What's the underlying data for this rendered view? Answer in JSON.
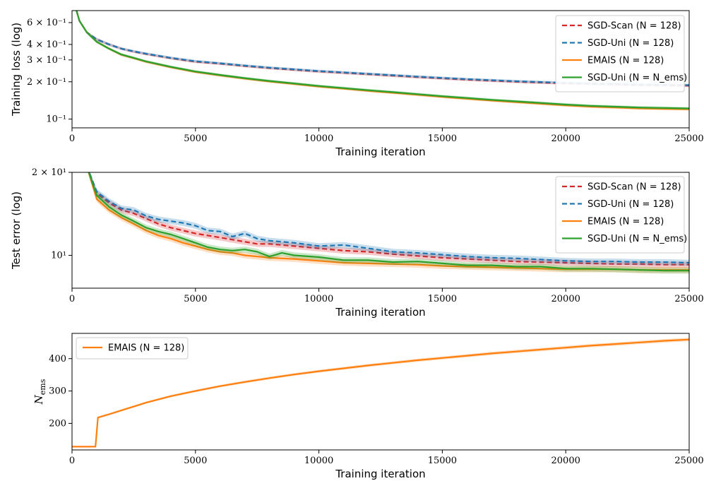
{
  "chart_data": [
    {
      "type": "line",
      "xlabel": "Training iteration",
      "ylabel": "Training loss (log)",
      "yscale": "log",
      "xlim": [
        0,
        25000
      ],
      "ylim": [
        0.085,
        0.75
      ],
      "xticks": [
        {
          "value": 0,
          "label": "0"
        },
        {
          "value": 5000,
          "label": "5000"
        },
        {
          "value": 10000,
          "label": "10000"
        },
        {
          "value": 15000,
          "label": "15000"
        },
        {
          "value": 20000,
          "label": "20000"
        },
        {
          "value": 25000,
          "label": "25000"
        }
      ],
      "yticks": [
        {
          "value": 0.1,
          "label": "10⁻¹"
        },
        {
          "value": 0.2,
          "label": "2 × 10⁻¹"
        },
        {
          "value": 0.3,
          "label": "3 × 10⁻¹"
        },
        {
          "value": 0.4,
          "label": "4 × 10⁻¹"
        },
        {
          "value": 0.6,
          "label": "6 × 10⁻¹"
        }
      ],
      "legend": "top-right",
      "grid": false,
      "series": [
        {
          "name": "SGD-Scan (N = 128)",
          "color": "#d62728",
          "dash": true,
          "x": [
            0,
            300,
            600,
            1000,
            1500,
            2000,
            2500,
            3000,
            4000,
            5000,
            6000,
            7000,
            8000,
            9000,
            10000,
            11000,
            12000,
            13000,
            14000,
            15000,
            16000,
            17000,
            18000,
            19000,
            20000,
            21000,
            22000,
            23000,
            24000,
            25000
          ],
          "y": [
            1.0,
            0.62,
            0.5,
            0.44,
            0.4,
            0.37,
            0.35,
            0.335,
            0.31,
            0.29,
            0.28,
            0.268,
            0.258,
            0.25,
            0.242,
            0.236,
            0.23,
            0.224,
            0.218,
            0.213,
            0.208,
            0.204,
            0.2,
            0.197,
            0.194,
            0.192,
            0.19,
            0.188,
            0.187,
            0.186
          ]
        },
        {
          "name": "SGD-Uni (N = 128)",
          "color": "#1f77b4",
          "dash": true,
          "x": [
            0,
            300,
            600,
            1000,
            1500,
            2000,
            2500,
            3000,
            4000,
            5000,
            6000,
            7000,
            8000,
            9000,
            10000,
            11000,
            12000,
            13000,
            14000,
            15000,
            16000,
            17000,
            18000,
            19000,
            20000,
            21000,
            22000,
            23000,
            24000,
            25000
          ],
          "y": [
            1.0,
            0.62,
            0.5,
            0.44,
            0.4,
            0.37,
            0.352,
            0.337,
            0.312,
            0.293,
            0.282,
            0.27,
            0.26,
            0.252,
            0.244,
            0.238,
            0.232,
            0.226,
            0.22,
            0.215,
            0.21,
            0.206,
            0.202,
            0.199,
            0.196,
            0.194,
            0.192,
            0.19,
            0.189,
            0.188
          ]
        },
        {
          "name": "EMAIS (N = 128)",
          "color": "#ff7f0e",
          "dash": false,
          "x": [
            0,
            300,
            600,
            1000,
            1500,
            2000,
            2500,
            3000,
            4000,
            5000,
            6000,
            7000,
            8000,
            9000,
            10000,
            11000,
            12000,
            13000,
            14000,
            15000,
            16000,
            17000,
            18000,
            19000,
            20000,
            21000,
            22000,
            23000,
            24000,
            25000
          ],
          "y": [
            1.0,
            0.62,
            0.5,
            0.42,
            0.37,
            0.33,
            0.31,
            0.29,
            0.262,
            0.24,
            0.225,
            0.212,
            0.201,
            0.192,
            0.183,
            0.176,
            0.169,
            0.163,
            0.157,
            0.151,
            0.146,
            0.141,
            0.137,
            0.133,
            0.129,
            0.126,
            0.124,
            0.122,
            0.121,
            0.12
          ]
        },
        {
          "name": "SGD-Uni (N = N_ems)",
          "color": "#2ca02c",
          "dash": false,
          "x": [
            0,
            300,
            600,
            1000,
            1500,
            2000,
            2500,
            3000,
            4000,
            5000,
            6000,
            7000,
            8000,
            9000,
            10000,
            11000,
            12000,
            13000,
            14000,
            15000,
            16000,
            17000,
            18000,
            19000,
            20000,
            21000,
            22000,
            23000,
            24000,
            25000
          ],
          "y": [
            1.0,
            0.62,
            0.5,
            0.42,
            0.37,
            0.332,
            0.312,
            0.292,
            0.264,
            0.242,
            0.227,
            0.214,
            0.203,
            0.194,
            0.185,
            0.178,
            0.171,
            0.165,
            0.159,
            0.153,
            0.148,
            0.143,
            0.139,
            0.135,
            0.131,
            0.128,
            0.126,
            0.124,
            0.123,
            0.122
          ]
        }
      ]
    },
    {
      "type": "line",
      "xlabel": "Training iteration",
      "ylabel": "Test error (log)",
      "yscale": "log",
      "xlim": [
        0,
        25000
      ],
      "ylim": [
        7.6,
        20
      ],
      "xticks": [
        {
          "value": 0,
          "label": "0"
        },
        {
          "value": 5000,
          "label": "5000"
        },
        {
          "value": 10000,
          "label": "10000"
        },
        {
          "value": 15000,
          "label": "15000"
        },
        {
          "value": 20000,
          "label": "20000"
        },
        {
          "value": 25000,
          "label": "25000"
        }
      ],
      "yticks": [
        {
          "value": 10,
          "label": "10¹"
        },
        {
          "value": 20,
          "label": "2 × 10¹"
        }
      ],
      "legend": "top-right",
      "grid": false,
      "series": [
        {
          "name": "SGD-Scan (N = 128)",
          "color": "#d62728",
          "dash": true,
          "x": [
            600,
            1000,
            1500,
            2000,
            2500,
            3000,
            3500,
            4000,
            4500,
            5000,
            5500,
            6000,
            6500,
            7000,
            7500,
            8000,
            9000,
            10000,
            11000,
            12000,
            13000,
            14000,
            15000,
            16000,
            17000,
            18000,
            19000,
            20000,
            21000,
            22000,
            23000,
            24000,
            25000
          ],
          "y": [
            21,
            16.8,
            15.5,
            14.6,
            14.2,
            13.6,
            13.0,
            12.6,
            12.3,
            12.0,
            11.8,
            11.6,
            11.4,
            11.2,
            11.0,
            11.0,
            10.8,
            10.6,
            10.4,
            10.3,
            10.1,
            9.95,
            9.8,
            9.7,
            9.6,
            9.5,
            9.45,
            9.4,
            9.35,
            9.3,
            9.3,
            9.25,
            9.25
          ]
        },
        {
          "name": "SGD-Uni (N = 128)",
          "color": "#1f77b4",
          "dash": true,
          "x": [
            600,
            1000,
            1500,
            2000,
            2500,
            3000,
            3500,
            4000,
            4500,
            5000,
            5500,
            6000,
            6500,
            7000,
            7500,
            8000,
            9000,
            10000,
            11000,
            12000,
            13000,
            14000,
            15000,
            16000,
            17000,
            18000,
            19000,
            20000,
            21000,
            22000,
            23000,
            24000,
            25000
          ],
          "y": [
            21,
            17.0,
            15.7,
            14.8,
            14.6,
            13.9,
            13.5,
            13.3,
            13.1,
            12.8,
            12.3,
            12.2,
            11.7,
            12.0,
            11.5,
            11.3,
            11.1,
            10.8,
            10.9,
            10.6,
            10.3,
            10.2,
            10.05,
            9.9,
            9.8,
            9.75,
            9.65,
            9.55,
            9.5,
            9.5,
            9.45,
            9.45,
            9.4
          ]
        },
        {
          "name": "EMAIS (N = 128)",
          "color": "#ff7f0e",
          "dash": false,
          "x": [
            600,
            1000,
            1500,
            2000,
            2500,
            3000,
            3500,
            4000,
            4500,
            5000,
            5500,
            6000,
            6500,
            7000,
            7500,
            8000,
            8500,
            9000,
            10000,
            11000,
            12000,
            13000,
            14000,
            15000,
            16000,
            17000,
            18000,
            19000,
            20000,
            21000,
            22000,
            23000,
            24000,
            25000
          ],
          "y": [
            21,
            16.0,
            14.6,
            13.7,
            13.0,
            12.3,
            11.8,
            11.5,
            11.1,
            10.8,
            10.5,
            10.3,
            10.2,
            10.0,
            9.9,
            9.8,
            9.75,
            9.7,
            9.55,
            9.4,
            9.35,
            9.3,
            9.25,
            9.15,
            9.1,
            9.05,
            9.0,
            8.95,
            8.9,
            8.9,
            8.9,
            8.85,
            8.85,
            8.85
          ]
        },
        {
          "name": "SGD-Uni (N = N_ems)",
          "color": "#2ca02c",
          "dash": false,
          "x": [
            600,
            1000,
            1500,
            2000,
            2500,
            3000,
            3500,
            4000,
            4500,
            5000,
            5500,
            6000,
            6500,
            7000,
            7500,
            8000,
            8500,
            9000,
            10000,
            11000,
            12000,
            13000,
            14000,
            15000,
            16000,
            17000,
            18000,
            19000,
            20000,
            21000,
            22000,
            23000,
            24000,
            25000
          ],
          "y": [
            21,
            16.5,
            15.0,
            14.0,
            13.3,
            12.6,
            12.2,
            11.9,
            11.5,
            11.1,
            10.7,
            10.5,
            10.4,
            10.5,
            10.3,
            9.9,
            10.2,
            10.0,
            9.85,
            9.6,
            9.6,
            9.45,
            9.5,
            9.35,
            9.2,
            9.2,
            9.1,
            9.1,
            8.95,
            8.95,
            8.9,
            8.85,
            8.8,
            8.8
          ]
        }
      ]
    },
    {
      "type": "line",
      "xlabel": "Training iteration",
      "ylabel": "N",
      "ylabel_sub": "ems",
      "yscale": "linear",
      "xlim": [
        0,
        25000
      ],
      "ylim": [
        118,
        478
      ],
      "xticks": [
        {
          "value": 0,
          "label": "0"
        },
        {
          "value": 5000,
          "label": "5000"
        },
        {
          "value": 10000,
          "label": "10000"
        },
        {
          "value": 15000,
          "label": "15000"
        },
        {
          "value": 20000,
          "label": "20000"
        },
        {
          "value": 25000,
          "label": "25000"
        }
      ],
      "yticks": [
        {
          "value": 200,
          "label": "200"
        },
        {
          "value": 300,
          "label": "300"
        },
        {
          "value": 400,
          "label": "400"
        }
      ],
      "legend": "top-left",
      "grid": false,
      "series": [
        {
          "name": "EMAIS (N = 128)",
          "color": "#ff7f0e",
          "dash": false,
          "x": [
            0,
            950,
            1050,
            1500,
            2000,
            3000,
            4000,
            5000,
            6000,
            7000,
            8000,
            9000,
            10000,
            11000,
            12000,
            13000,
            14000,
            15000,
            16000,
            17000,
            18000,
            19000,
            20000,
            21000,
            22000,
            23000,
            24000,
            25000
          ],
          "y": [
            128,
            128,
            218,
            228,
            240,
            264,
            284,
            300,
            315,
            328,
            340,
            351,
            361,
            370,
            379,
            387,
            395,
            402,
            409,
            416,
            422,
            428,
            434,
            440,
            445,
            450,
            455,
            459
          ]
        }
      ]
    }
  ]
}
